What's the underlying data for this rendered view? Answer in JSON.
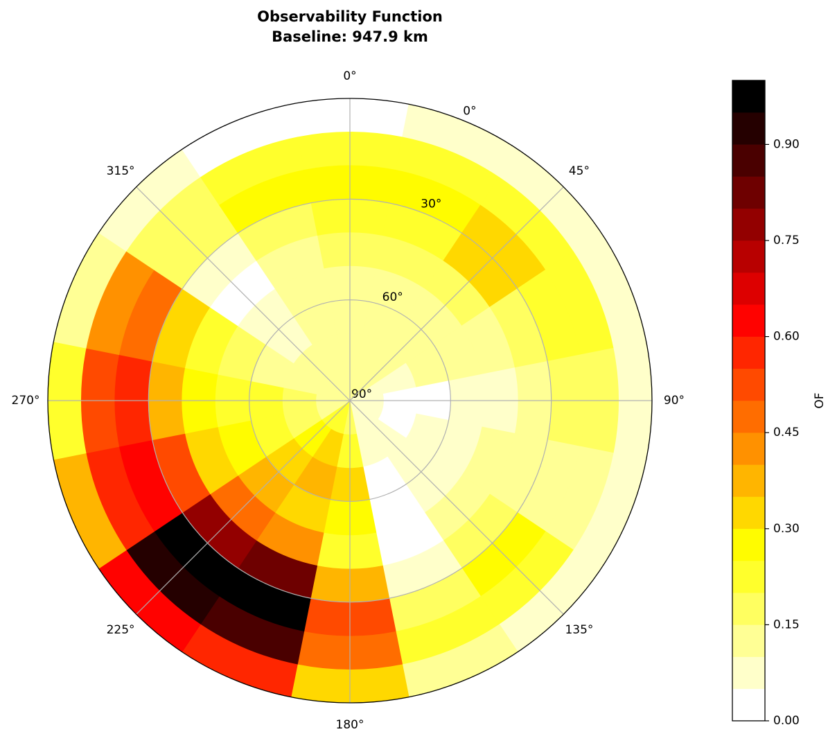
{
  "chart_data": {
    "type": "polar-contour",
    "title": "Observability Function",
    "subtitle": "Baseline: 947.9 km",
    "colormap": "hot_r",
    "grid": true,
    "x": [
      0,
      22.5,
      45,
      67.5,
      90,
      112.5,
      135,
      157.5,
      180,
      202.5,
      225,
      247.5,
      270,
      292.5,
      315,
      337.5
    ],
    "y": [
      5,
      15,
      25,
      35,
      45,
      55,
      65,
      75,
      85
    ],
    "z": [
      [
        0.03,
        0.05,
        0.08,
        0.08,
        0.08,
        0.05,
        0.05,
        0.1,
        0.3,
        0.55,
        0.6,
        0.35,
        0.2,
        0.1,
        0.05,
        0.03
      ],
      [
        0.2,
        0.2,
        0.22,
        0.2,
        0.15,
        0.12,
        0.2,
        0.2,
        0.45,
        0.85,
        0.9,
        0.55,
        0.5,
        0.4,
        0.15,
        0.2
      ],
      [
        0.25,
        0.28,
        0.3,
        0.2,
        0.15,
        0.12,
        0.25,
        0.15,
        0.5,
        0.95,
        0.98,
        0.6,
        0.55,
        0.45,
        0.15,
        0.25
      ],
      [
        0.2,
        0.22,
        0.3,
        0.18,
        0.12,
        0.1,
        0.15,
        0.05,
        0.35,
        0.8,
        0.75,
        0.5,
        0.35,
        0.3,
        0.05,
        0.15
      ],
      [
        0.15,
        0.15,
        0.15,
        0.12,
        0.08,
        0.1,
        0.1,
        0.03,
        0.2,
        0.4,
        0.45,
        0.3,
        0.25,
        0.2,
        0.02,
        0.1
      ],
      [
        0.1,
        0.1,
        0.1,
        0.1,
        0.05,
        0.08,
        0.05,
        0.02,
        0.25,
        0.3,
        0.35,
        0.25,
        0.2,
        0.15,
        0.05,
        0.1
      ],
      [
        0.1,
        0.1,
        0.12,
        0.1,
        0.03,
        0.05,
        0.05,
        0.02,
        0.3,
        0.35,
        0.3,
        0.2,
        0.2,
        0.12,
        0.08,
        0.1
      ],
      [
        0.1,
        0.1,
        0.12,
        0.08,
        0.02,
        0.03,
        0.05,
        0.05,
        0.2,
        0.3,
        0.25,
        0.15,
        0.15,
        0.1,
        0.1,
        0.1
      ],
      [
        0.1,
        0.1,
        0.1,
        0.08,
        0.05,
        0.05,
        0.05,
        0.08,
        0.15,
        0.2,
        0.2,
        0.12,
        0.12,
        0.1,
        0.1,
        0.1
      ]
    ],
    "rlim": [
      90,
      0
    ],
    "thetaticks": [
      {
        "value": 0,
        "label": "0°"
      },
      {
        "value": 45,
        "label": "45°"
      },
      {
        "value": 90,
        "label": "90°"
      },
      {
        "value": 135,
        "label": "135°"
      },
      {
        "value": 180,
        "label": "180°"
      },
      {
        "value": 225,
        "label": "225°"
      },
      {
        "value": 270,
        "label": "270°"
      },
      {
        "value": 315,
        "label": "315°"
      }
    ],
    "rticks": [
      {
        "value": 0,
        "label": "0°"
      },
      {
        "value": 30,
        "label": "30°"
      },
      {
        "value": 60,
        "label": "60°"
      },
      {
        "value": 90,
        "label": "90°"
      }
    ],
    "levels": [
      0,
      0.05,
      0.1,
      0.15,
      0.2,
      0.25,
      0.3,
      0.35,
      0.4,
      0.45,
      0.5,
      0.55,
      0.6,
      0.65,
      0.7,
      0.75,
      0.8,
      0.85,
      0.9,
      0.95,
      1.0
    ],
    "cbar_label": "OF",
    "cbar_ticks": [
      {
        "value": 0,
        "label": "0.00"
      },
      {
        "value": 0.15,
        "label": "0.15"
      },
      {
        "value": 0.3,
        "label": "0.30"
      },
      {
        "value": 0.45,
        "label": "0.45"
      },
      {
        "value": 0.6,
        "label": "0.60"
      },
      {
        "value": 0.75,
        "label": "0.75"
      },
      {
        "value": 0.9,
        "label": "0.90"
      }
    ]
  }
}
